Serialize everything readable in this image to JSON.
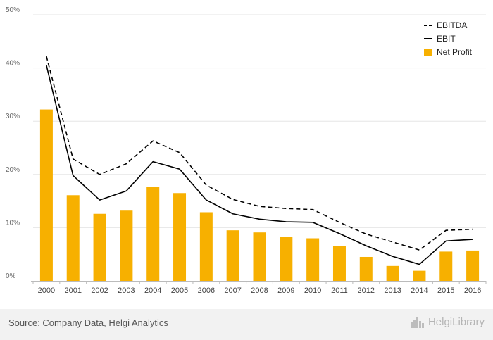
{
  "chart_data": {
    "type": "bar",
    "x": [
      "2000",
      "2001",
      "2002",
      "2003",
      "2004",
      "2005",
      "2006",
      "2007",
      "2008",
      "2009",
      "2010",
      "2011",
      "2012",
      "2013",
      "2014",
      "2015",
      "2016"
    ],
    "ylim": [
      0,
      50
    ],
    "yticks": [
      "0%",
      "10%",
      "20%",
      "30%",
      "40%",
      "50%"
    ],
    "ytick_values": [
      0,
      10,
      20,
      30,
      40,
      50
    ],
    "grid": true,
    "legend_position": "top-right",
    "series": [
      {
        "name": "EBITDA",
        "kind": "line",
        "style": "dashed",
        "color": "#000000",
        "values": [
          42.2,
          22.9,
          20.0,
          22.0,
          26.3,
          24.1,
          18.0,
          15.3,
          14.0,
          13.6,
          13.4,
          11.0,
          8.8,
          7.3,
          5.8,
          9.5,
          9.7
        ]
      },
      {
        "name": "EBIT",
        "kind": "line",
        "style": "solid",
        "color": "#000000",
        "values": [
          40.5,
          19.8,
          15.2,
          16.9,
          22.4,
          21.0,
          15.2,
          12.6,
          11.6,
          11.1,
          11.0,
          8.9,
          6.6,
          4.6,
          3.1,
          7.5,
          7.8
        ]
      },
      {
        "name": "Net Profit",
        "kind": "bar",
        "color": "#f7b000",
        "values": [
          32.2,
          16.1,
          12.6,
          13.2,
          17.7,
          16.5,
          12.9,
          9.5,
          9.1,
          8.3,
          8.0,
          6.5,
          4.5,
          2.8,
          1.9,
          5.5,
          5.7
        ]
      }
    ]
  },
  "footer": {
    "source": "Source: Company Data, Helgi Analytics",
    "brand": "HelgiLibrary",
    "brand_icon": "city-skyline-icon"
  }
}
